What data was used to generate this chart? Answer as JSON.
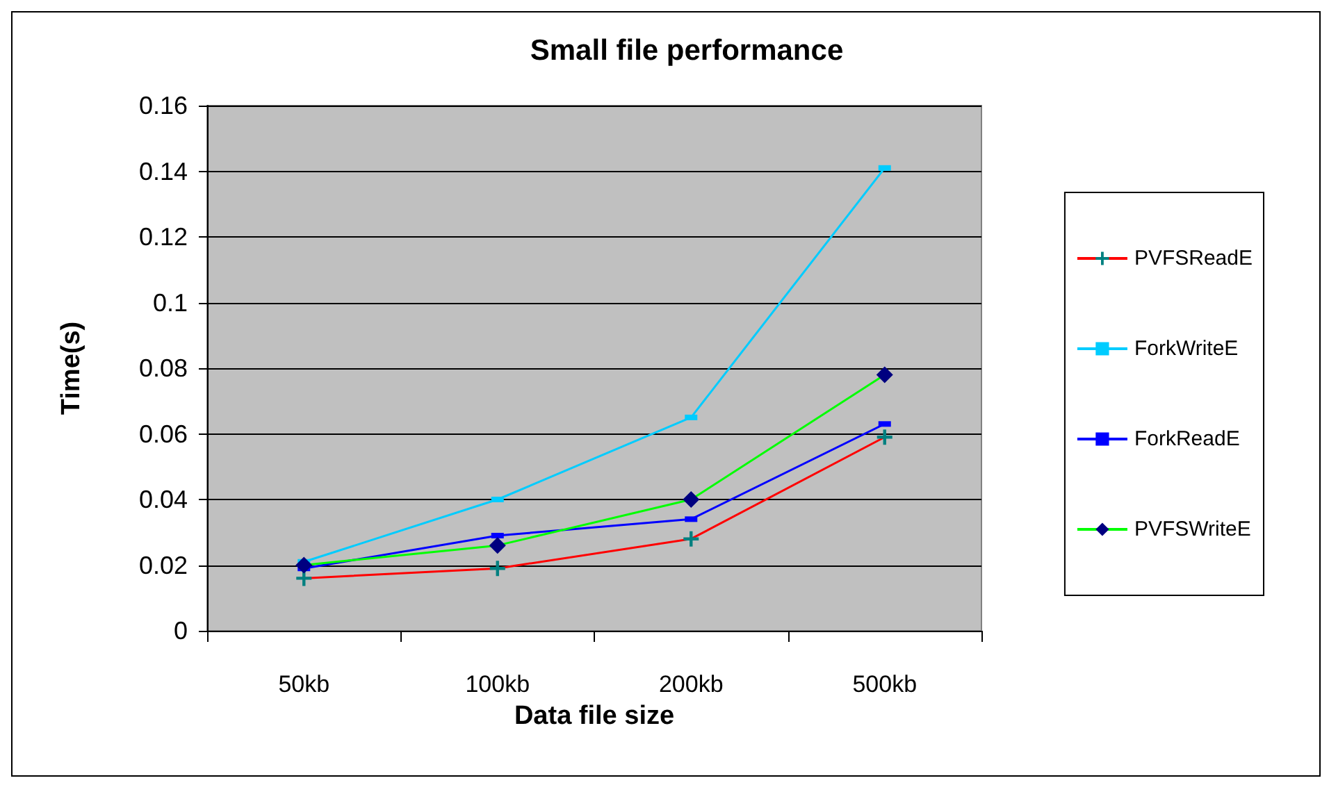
{
  "chart_data": {
    "type": "line",
    "title": "Small file performance",
    "xlabel": "Data file size",
    "ylabel": "Time(s)",
    "categories": [
      "50kb",
      "100kb",
      "200kb",
      "500kb"
    ],
    "series": [
      {
        "name": "PVFSReadE",
        "color": "#ff0000",
        "marker": "cross",
        "values": [
          0.016,
          0.019,
          0.028,
          0.059
        ]
      },
      {
        "name": "ForkWriteE",
        "color": "#00ccff",
        "marker": "square",
        "values": [
          0.021,
          0.04,
          0.065,
          0.141
        ]
      },
      {
        "name": "ForkReadE",
        "color": "#0000ff",
        "marker": "square",
        "values": [
          0.019,
          0.029,
          0.034,
          0.063
        ]
      },
      {
        "name": "PVFSWriteE",
        "color": "#00ff00",
        "marker": "diamond",
        "values": [
          0.02,
          0.026,
          0.04,
          0.078
        ]
      }
    ],
    "ylim": [
      0,
      0.16
    ],
    "yticks": [
      0,
      0.02,
      0.04,
      0.06,
      0.08,
      0.1,
      0.12,
      0.14,
      0.16
    ],
    "grid": "y",
    "legend": "right"
  }
}
